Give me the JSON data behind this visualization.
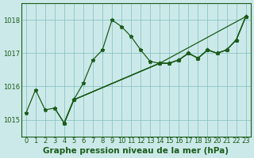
{
  "title": "Graphe pression niveau de la mer (hPa)",
  "bg_color": "#cce9e9",
  "plot_bg_color": "#cce9e9",
  "grid_color": "#7fbfbf",
  "line_color": "#1a5c1a",
  "ylim": [
    1014.5,
    1018.5
  ],
  "xlim": [
    -0.5,
    23.5
  ],
  "yticks": [
    1015,
    1016,
    1017,
    1018
  ],
  "xticks": [
    0,
    1,
    2,
    3,
    4,
    5,
    6,
    7,
    8,
    9,
    10,
    11,
    12,
    13,
    14,
    15,
    16,
    17,
    18,
    19,
    20,
    21,
    22,
    23
  ],
  "series1_x": [
    0,
    1,
    2,
    3,
    4,
    5,
    6,
    7,
    8,
    9,
    10,
    11,
    12,
    13,
    14,
    15,
    16,
    17,
    18,
    19,
    20,
    21,
    22,
    23
  ],
  "series1_y": [
    1015.2,
    1015.9,
    1015.3,
    1015.35,
    1014.9,
    1015.6,
    1016.1,
    1016.8,
    1017.1,
    1018.0,
    1017.8,
    1017.5,
    1017.1,
    1016.75,
    1016.7,
    1016.7,
    1016.8,
    1017.0,
    1016.85,
    1017.1,
    1017.0,
    1017.1,
    1017.4,
    1018.1
  ],
  "series2_x": [
    3,
    4,
    5,
    14,
    15,
    16,
    17,
    18,
    19,
    20,
    21,
    22,
    23
  ],
  "series2_y": [
    1015.35,
    1014.9,
    1015.6,
    1016.7,
    1016.7,
    1016.8,
    1017.0,
    1016.85,
    1017.1,
    1017.0,
    1017.1,
    1017.4,
    1018.1
  ],
  "series3_x": [
    4,
    5,
    14,
    15,
    16,
    17,
    18,
    19,
    20,
    21,
    22,
    23
  ],
  "series3_y": [
    1014.9,
    1015.6,
    1016.7,
    1016.7,
    1016.8,
    1017.0,
    1016.85,
    1017.1,
    1017.0,
    1017.1,
    1017.4,
    1018.1
  ],
  "series4_x": [
    4,
    5,
    14,
    23
  ],
  "series4_y": [
    1014.9,
    1015.6,
    1016.7,
    1018.1
  ],
  "title_fontsize": 7.5,
  "tick_fontsize": 6.0
}
